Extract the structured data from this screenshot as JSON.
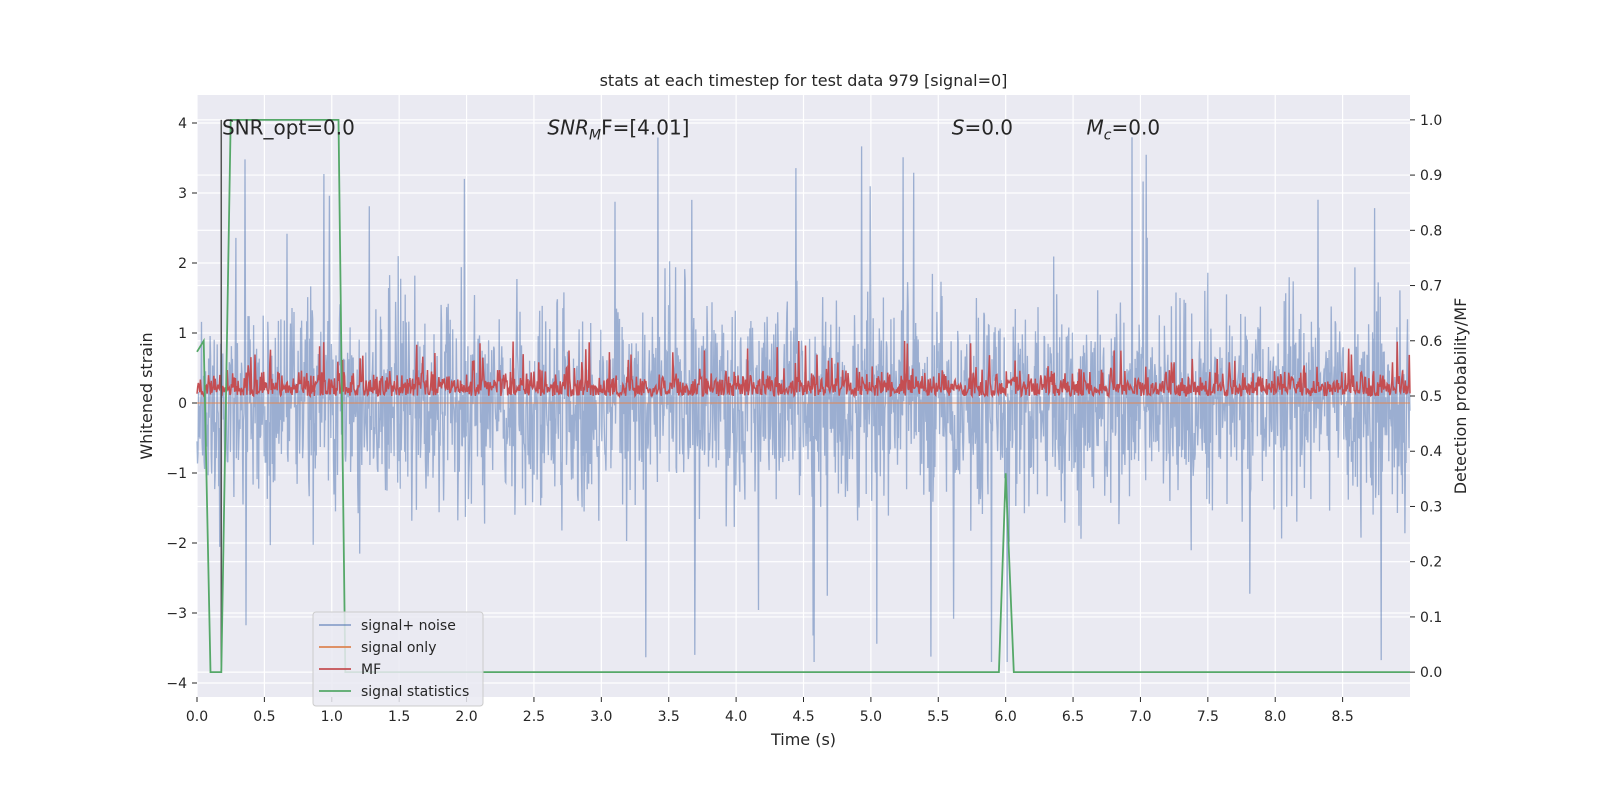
{
  "chart_data": {
    "type": "line",
    "title": "stats at each timestep for test data 979 [signal=0]",
    "xlabel": "Time (s)",
    "ylabel": "Whitened strain",
    "ylabel_right": "Detection probability/MF",
    "xlim": [
      0.0,
      9.0
    ],
    "ylim": [
      -4.2,
      4.4
    ],
    "ylim_right": [
      -0.045,
      1.045
    ],
    "x_ticks": [
      "0.0",
      "0.5",
      "1.0",
      "1.5",
      "2.0",
      "2.5",
      "3.0",
      "3.5",
      "4.0",
      "4.5",
      "5.0",
      "5.5",
      "6.0",
      "6.5",
      "7.0",
      "7.5",
      "8.0",
      "8.5"
    ],
    "y_ticks": [
      "4",
      "3",
      "2",
      "1",
      "0",
      "−1",
      "−2",
      "−3",
      "−4"
    ],
    "y_right_ticks": [
      "1.0",
      "0.9",
      "0.8",
      "0.7",
      "0.6",
      "0.5",
      "0.4",
      "0.3",
      "0.2",
      "0.1",
      "0.0"
    ],
    "grid": true,
    "legend_position": "lower-left",
    "annotations": [
      {
        "text": "SNR_opt=0.0",
        "x": 0.2,
        "y": 4.05
      },
      {
        "text": "SNR",
        "sub": "M",
        "suffix": "F=[4.01]",
        "x": 2.6,
        "y": 4.05
      },
      {
        "text": "S",
        "suffix": "=0.0",
        "x": 5.6,
        "y": 4.05
      },
      {
        "text": "M",
        "sub": "c",
        "suffix": "=0.0",
        "x": 6.6,
        "y": 4.05
      }
    ],
    "series": [
      {
        "name": "signal+ noise",
        "color": "#4c72b0",
        "description": "noise band",
        "noise_amplitude": 1.0,
        "peaks_up": 3.9,
        "peaks_down": -3.7
      },
      {
        "name": "signal only",
        "color": "#dd8452",
        "y_const": 0.0
      },
      {
        "name": "MF",
        "color": "#c44e52",
        "axis": "right",
        "level_mean": 0.53,
        "level_max": 0.6
      },
      {
        "name": "signal statistics",
        "color": "#55a868",
        "axis": "right",
        "x": [
          0.0,
          0.05,
          0.1,
          0.18,
          0.25,
          1.05,
          1.1,
          1.12,
          5.95,
          6.0,
          6.06,
          9.0
        ],
        "y": [
          0.58,
          0.6,
          0.0,
          0.0,
          1.0,
          1.0,
          0.0,
          0.0,
          0.0,
          0.36,
          0.0,
          0.0
        ]
      }
    ],
    "vline": {
      "x": 0.18,
      "color": "#555555"
    }
  },
  "colors": {
    "plot_bg": "#eaeaf2",
    "grid": "#ffffff"
  }
}
